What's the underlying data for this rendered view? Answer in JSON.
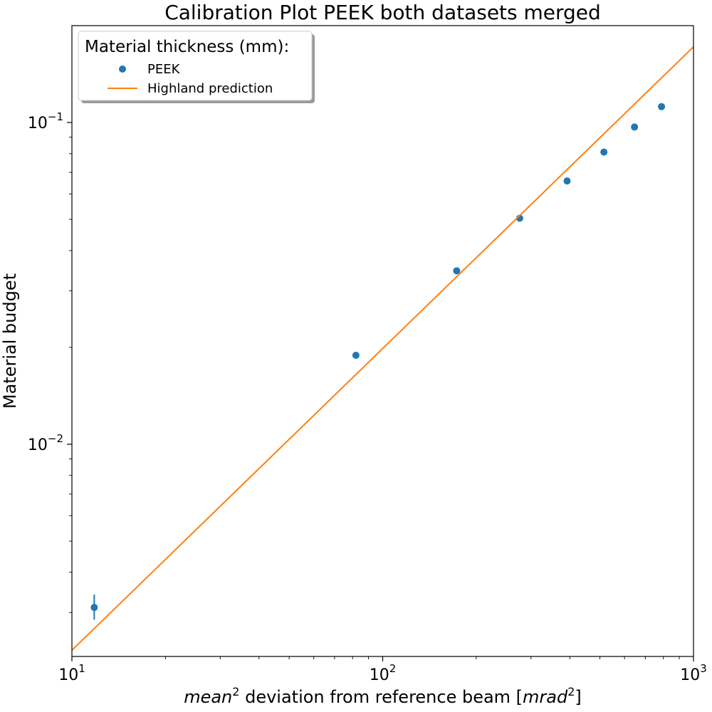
{
  "chart_data": {
    "type": "scatter",
    "title": "Calibration Plot PEEK both datasets merged",
    "xlabel": {
      "italic_part": "mean",
      "sup": "2",
      "mid": " deviation from reference beam [",
      "unit_italic": "mrad",
      "unit_sup": "2",
      "end": "]"
    },
    "ylabel": "Material budget",
    "x_scale": "log",
    "y_scale": "log",
    "xlim": [
      10,
      1000
    ],
    "ylim": [
      0.00219,
      0.2
    ],
    "x_ticks": [
      {
        "value": 10,
        "base": "10",
        "exp": "1"
      },
      {
        "value": 100,
        "base": "10",
        "exp": "2"
      },
      {
        "value": 1000,
        "base": "10",
        "exp": "3"
      }
    ],
    "y_ticks": [
      {
        "value": 0.01,
        "base": "10",
        "exp": "−2"
      },
      {
        "value": 0.1,
        "base": "10",
        "exp": "−1"
      }
    ],
    "grid": false,
    "legend": {
      "title": "Material thickness (mm):",
      "placement": "top-left",
      "entries": [
        "PEEK",
        "Highland prediction"
      ]
    },
    "series": [
      {
        "name": "PEEK",
        "kind": "scatter",
        "color": "#1f77b4",
        "points": [
          {
            "x": 11.8,
            "y": 0.00311,
            "err_low": 0.00285,
            "err_high": 0.00341
          },
          {
            "x": 82,
            "y": 0.0189
          },
          {
            "x": 173,
            "y": 0.0346
          },
          {
            "x": 276,
            "y": 0.0504
          },
          {
            "x": 392,
            "y": 0.0658
          },
          {
            "x": 515,
            "y": 0.0809
          },
          {
            "x": 646,
            "y": 0.0968
          },
          {
            "x": 789,
            "y": 0.112
          }
        ]
      },
      {
        "name": "Highland prediction",
        "kind": "line",
        "color": "#ff7f0e",
        "points": [
          {
            "x": 10,
            "y": 0.00229
          },
          {
            "x": 1000,
            "y": 0.1718
          }
        ]
      }
    ]
  }
}
